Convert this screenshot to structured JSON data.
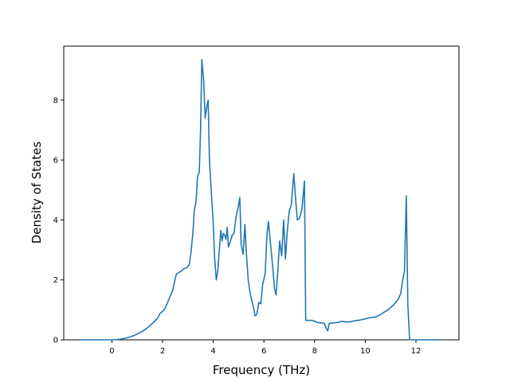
{
  "chart_data": {
    "type": "line",
    "title": "",
    "xlabel": "Frequency (THz)",
    "ylabel": "Density of States",
    "xlim": [
      -1.9,
      13.7
    ],
    "ylim": [
      0,
      9.8
    ],
    "xticks": [
      0,
      2,
      4,
      6,
      8,
      10,
      12
    ],
    "yticks": [
      0,
      2,
      4,
      6,
      8
    ],
    "grid": false,
    "line_color": "#1f77b4",
    "series": [
      {
        "values": [
          [
            -1.2,
            0
          ],
          [
            -0.8,
            0
          ],
          [
            -0.4,
            0
          ],
          [
            0.0,
            0
          ],
          [
            0.2,
            0.01
          ],
          [
            0.4,
            0.03
          ],
          [
            0.6,
            0.07
          ],
          [
            0.8,
            0.12
          ],
          [
            1.0,
            0.19
          ],
          [
            1.2,
            0.28
          ],
          [
            1.4,
            0.4
          ],
          [
            1.6,
            0.55
          ],
          [
            1.8,
            0.72
          ],
          [
            1.9,
            0.88
          ],
          [
            2.0,
            0.95
          ],
          [
            2.1,
            1.05
          ],
          [
            2.2,
            1.25
          ],
          [
            2.3,
            1.45
          ],
          [
            2.4,
            1.65
          ],
          [
            2.5,
            2.05
          ],
          [
            2.55,
            2.2
          ],
          [
            2.65,
            2.25
          ],
          [
            2.75,
            2.3
          ],
          [
            2.85,
            2.38
          ],
          [
            2.95,
            2.4
          ],
          [
            3.05,
            2.5
          ],
          [
            3.12,
            2.9
          ],
          [
            3.2,
            3.6
          ],
          [
            3.25,
            4.3
          ],
          [
            3.32,
            4.6
          ],
          [
            3.38,
            5.45
          ],
          [
            3.45,
            5.6
          ],
          [
            3.5,
            7.0
          ],
          [
            3.55,
            9.35
          ],
          [
            3.62,
            8.7
          ],
          [
            3.68,
            7.4
          ],
          [
            3.75,
            7.8
          ],
          [
            3.8,
            8.0
          ],
          [
            3.85,
            6.0
          ],
          [
            3.92,
            5.0
          ],
          [
            4.0,
            3.9
          ],
          [
            4.05,
            2.8
          ],
          [
            4.12,
            2.0
          ],
          [
            4.18,
            2.3
          ],
          [
            4.25,
            3.1
          ],
          [
            4.3,
            3.65
          ],
          [
            4.35,
            3.3
          ],
          [
            4.4,
            3.55
          ],
          [
            4.45,
            3.5
          ],
          [
            4.5,
            3.35
          ],
          [
            4.55,
            3.75
          ],
          [
            4.6,
            3.1
          ],
          [
            4.68,
            3.3
          ],
          [
            4.75,
            3.5
          ],
          [
            4.82,
            3.55
          ],
          [
            4.9,
            4.1
          ],
          [
            5.0,
            4.5
          ],
          [
            5.05,
            4.75
          ],
          [
            5.1,
            3.2
          ],
          [
            5.18,
            2.85
          ],
          [
            5.25,
            3.85
          ],
          [
            5.3,
            3.0
          ],
          [
            5.38,
            2.0
          ],
          [
            5.45,
            1.6
          ],
          [
            5.52,
            1.3
          ],
          [
            5.6,
            1.05
          ],
          [
            5.65,
            0.8
          ],
          [
            5.72,
            0.85
          ],
          [
            5.8,
            1.25
          ],
          [
            5.88,
            1.2
          ],
          [
            5.95,
            1.85
          ],
          [
            6.05,
            2.2
          ],
          [
            6.12,
            3.5
          ],
          [
            6.18,
            3.95
          ],
          [
            6.25,
            3.3
          ],
          [
            6.35,
            2.4
          ],
          [
            6.42,
            1.7
          ],
          [
            6.48,
            1.5
          ],
          [
            6.55,
            2.3
          ],
          [
            6.62,
            3.3
          ],
          [
            6.7,
            2.8
          ],
          [
            6.78,
            4.0
          ],
          [
            6.85,
            2.7
          ],
          [
            6.92,
            3.6
          ],
          [
            7.0,
            4.3
          ],
          [
            7.08,
            4.5
          ],
          [
            7.18,
            5.55
          ],
          [
            7.25,
            4.7
          ],
          [
            7.32,
            4.0
          ],
          [
            7.4,
            4.05
          ],
          [
            7.5,
            4.35
          ],
          [
            7.6,
            5.3
          ],
          [
            7.65,
            0.65
          ],
          [
            7.8,
            0.65
          ],
          [
            7.9,
            0.65
          ],
          [
            8.0,
            0.62
          ],
          [
            8.1,
            0.58
          ],
          [
            8.2,
            0.57
          ],
          [
            8.3,
            0.56
          ],
          [
            8.38,
            0.55
          ],
          [
            8.45,
            0.4
          ],
          [
            8.52,
            0.3
          ],
          [
            8.58,
            0.55
          ],
          [
            8.7,
            0.56
          ],
          [
            8.9,
            0.58
          ],
          [
            9.1,
            0.62
          ],
          [
            9.2,
            0.6
          ],
          [
            9.4,
            0.6
          ],
          [
            9.6,
            0.64
          ],
          [
            9.8,
            0.66
          ],
          [
            10.0,
            0.7
          ],
          [
            10.2,
            0.74
          ],
          [
            10.4,
            0.76
          ],
          [
            10.5,
            0.8
          ],
          [
            10.6,
            0.84
          ],
          [
            10.7,
            0.9
          ],
          [
            10.8,
            0.95
          ],
          [
            10.9,
            1.0
          ],
          [
            11.0,
            1.08
          ],
          [
            11.1,
            1.15
          ],
          [
            11.2,
            1.25
          ],
          [
            11.3,
            1.35
          ],
          [
            11.4,
            1.55
          ],
          [
            11.48,
            2.0
          ],
          [
            11.55,
            2.3
          ],
          [
            11.62,
            4.8
          ],
          [
            11.68,
            1.2
          ],
          [
            11.75,
            0
          ],
          [
            12.0,
            0
          ],
          [
            12.5,
            0
          ],
          [
            13.0,
            0
          ]
        ]
      }
    ]
  }
}
